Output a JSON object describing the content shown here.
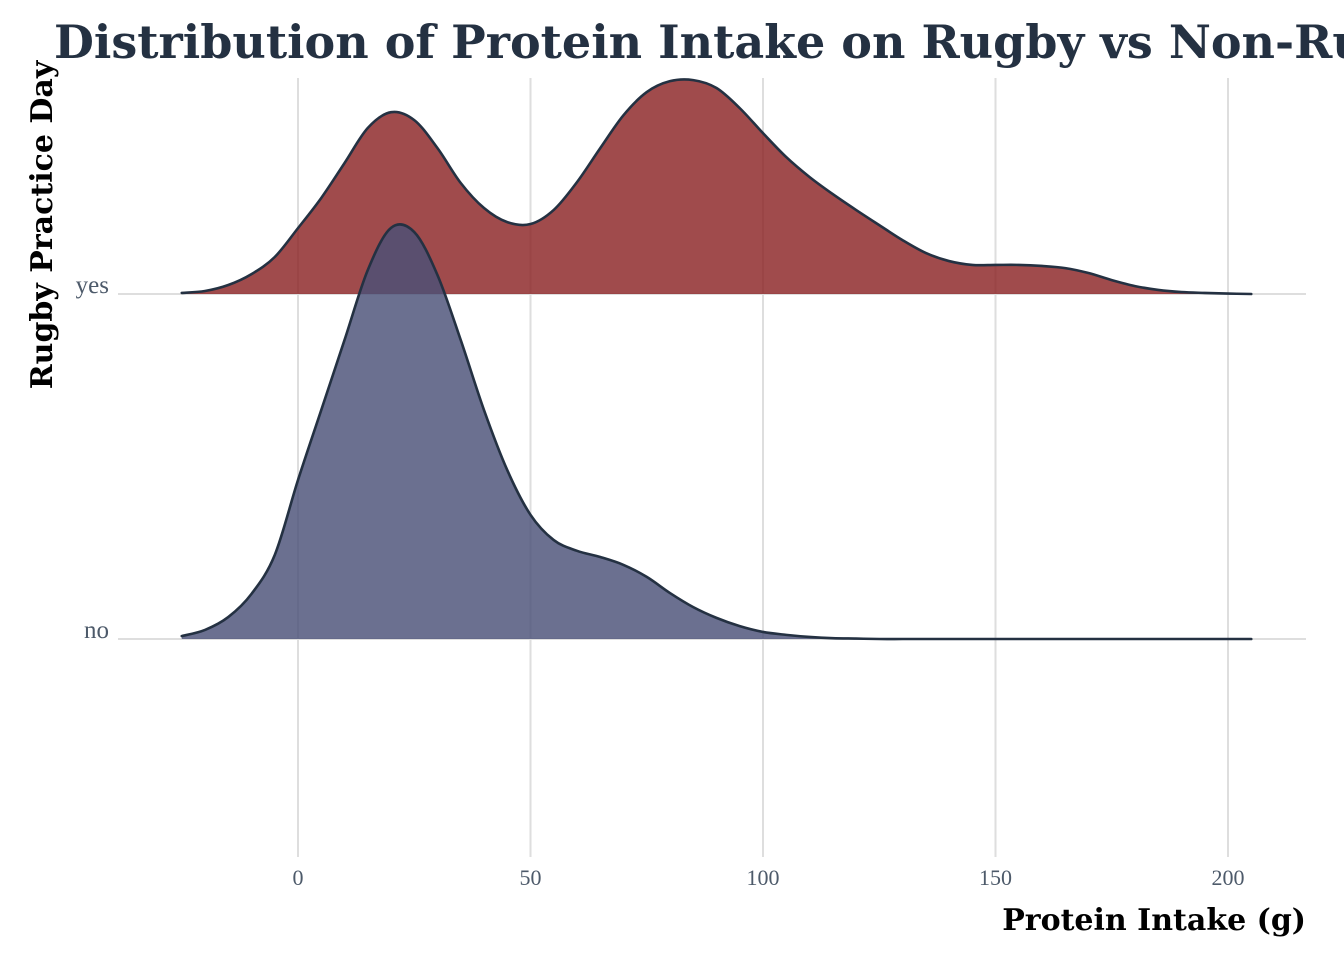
{
  "chart_data": {
    "type": "ridgeline",
    "title": "Distribution of Protein Intake on Rugby vs Non-Rugby Days",
    "xlabel": "Protein Intake (g)",
    "ylabel": "Rugby Practice Day",
    "xlim": [
      -40,
      217
    ],
    "xticks": [
      0,
      50,
      100,
      150,
      200
    ],
    "xtick_labels": [
      "0",
      "50",
      "100",
      "150",
      "200"
    ],
    "grid": true,
    "legend": "none",
    "categories": [
      "no",
      "yes"
    ],
    "density_x": [
      -25,
      -20,
      -15,
      -10,
      -5,
      0,
      5,
      10,
      15,
      20,
      25,
      30,
      35,
      40,
      45,
      50,
      55,
      60,
      65,
      70,
      75,
      80,
      85,
      90,
      95,
      100,
      105,
      110,
      115,
      120,
      125,
      130,
      135,
      140,
      145,
      150,
      155,
      160,
      165,
      170,
      175,
      180,
      185,
      190,
      195,
      200,
      205
    ],
    "series": [
      {
        "name": "no",
        "color": "#4b5078",
        "outline": "#243142",
        "peak_height_rows": 1.2,
        "density": [
          0.007,
          0.022,
          0.053,
          0.109,
          0.203,
          0.384,
          0.553,
          0.722,
          0.891,
          0.993,
          0.983,
          0.879,
          0.722,
          0.553,
          0.408,
          0.3,
          0.239,
          0.213,
          0.198,
          0.179,
          0.15,
          0.111,
          0.077,
          0.051,
          0.031,
          0.017,
          0.01,
          0.005,
          0.002,
          0.001,
          0,
          0,
          0,
          0,
          0,
          0,
          0,
          0,
          0,
          0,
          0,
          0,
          0,
          0,
          0,
          0,
          0
        ]
      },
      {
        "name": "yes",
        "color": "#8b2325",
        "outline": "#243142",
        "peak_height_rows": 0.62,
        "density": [
          0.005,
          0.014,
          0.042,
          0.093,
          0.173,
          0.308,
          0.449,
          0.612,
          0.776,
          0.85,
          0.813,
          0.682,
          0.519,
          0.402,
          0.336,
          0.327,
          0.393,
          0.523,
          0.682,
          0.836,
          0.944,
          0.995,
          1.0,
          0.963,
          0.869,
          0.752,
          0.64,
          0.547,
          0.467,
          0.393,
          0.322,
          0.252,
          0.192,
          0.154,
          0.136,
          0.136,
          0.136,
          0.131,
          0.121,
          0.098,
          0.065,
          0.037,
          0.019,
          0.009,
          0.005,
          0.002,
          0
        ]
      }
    ]
  }
}
